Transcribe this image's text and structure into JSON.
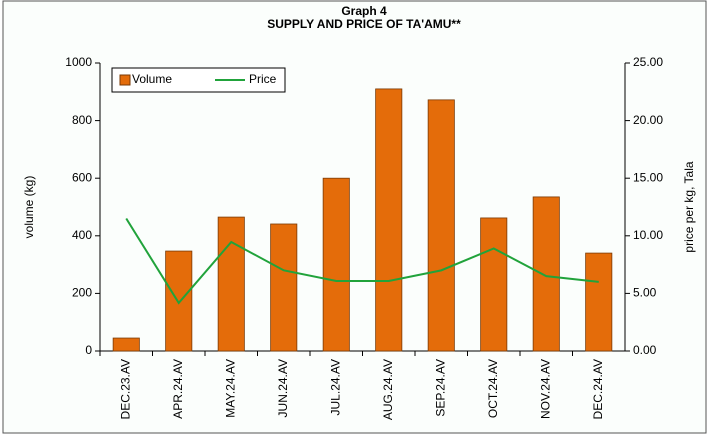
{
  "chart_data": {
    "type": "bar_line",
    "title": "Graph 4",
    "subtitle": "SUPPLY AND PRICE OF TA'AMU**",
    "y_label": "volume (kg)",
    "y2_label": "price per kg, Tala",
    "categories": [
      "DEC.23.AV",
      "APR.24.AV",
      "MAY.24.AV",
      "JUN.24.AV",
      "JUL.24.AV",
      "AUG.24.AV",
      "SEP.24.AV",
      "OCT.24.AV",
      "NOV.24.AV",
      "DEC.24.AV"
    ],
    "series": [
      {
        "name": "Volume",
        "type": "bar",
        "color": "#e46c0a",
        "values": [
          45,
          347,
          465,
          441,
          600,
          910,
          872,
          462,
          535,
          340
        ]
      },
      {
        "name": "Price",
        "type": "line",
        "axis": "y2",
        "color": "#21a33b",
        "values": [
          11.5,
          4.17,
          9.46,
          7.0,
          6.08,
          6.08,
          7.0,
          8.9,
          6.5,
          6.0
        ]
      }
    ],
    "ylim": [
      0,
      1000
    ],
    "yticks": [
      0,
      200,
      400,
      600,
      800,
      1000
    ],
    "y2lim": [
      0,
      25
    ],
    "y2ticks": [
      {
        "value": 0,
        "label": "0.00"
      },
      {
        "value": 5,
        "label": "5.00"
      },
      {
        "value": 10,
        "label": "10.00"
      },
      {
        "value": 15,
        "label": "15.00"
      },
      {
        "value": 20,
        "label": "20.00"
      },
      {
        "value": 25,
        "label": "25.00"
      }
    ],
    "grid": false
  }
}
